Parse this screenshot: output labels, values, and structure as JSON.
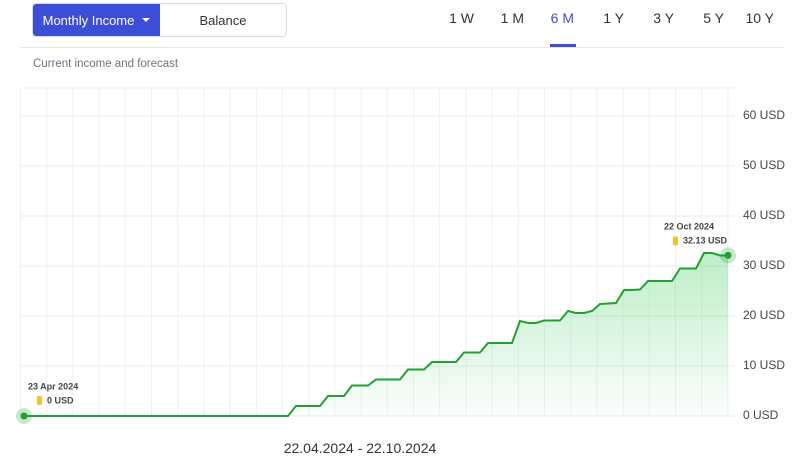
{
  "ui": {
    "tabs": [
      "Monthly Income",
      "Balance"
    ],
    "active_tab": "Monthly Income",
    "ranges": [
      "1 W",
      "1 M",
      "6 M",
      "1 Y",
      "3 Y",
      "5 Y",
      "10 Y"
    ],
    "active_range": "6 M",
    "subtitle": "Current income and forecast",
    "period": "22.04.2024 - 22.10.2024"
  },
  "chart_data": {
    "type": "line",
    "color": "#23a034",
    "area": true,
    "grid": true,
    "values": [
      0,
      0,
      0,
      0,
      0,
      0,
      0,
      0,
      0,
      0,
      0,
      0,
      0,
      0,
      0,
      0,
      0,
      0,
      0,
      0,
      0,
      0,
      0,
      0,
      0,
      0,
      0,
      0,
      0,
      0,
      0,
      0,
      0,
      0,
      2,
      2,
      2,
      2,
      4,
      4,
      4,
      6.1,
      6.1,
      6.1,
      7.3,
      7.3,
      7.3,
      7.3,
      9.3,
      9.3,
      9.3,
      10.8,
      10.8,
      10.8,
      10.8,
      12.7,
      12.7,
      12.7,
      14.6,
      14.6,
      14.6,
      14.6,
      19.0,
      18.6,
      18.6,
      19.1,
      19.1,
      19.1,
      21.0,
      20.6,
      20.6,
      21.0,
      22.4,
      22.5,
      22.6,
      25.2,
      25.2,
      25.3,
      27.0,
      27.0,
      27.0,
      27.0,
      29.5,
      29.5,
      29.5,
      32.6,
      32.6,
      32.1,
      32.13
    ],
    "ylim": [
      0,
      60
    ],
    "yticks": [
      {
        "value": 0,
        "label": "0 USD"
      },
      {
        "value": 10,
        "label": "10 USD"
      },
      {
        "value": 20,
        "label": "20 USD"
      },
      {
        "value": 30,
        "label": "30 USD"
      },
      {
        "value": 40,
        "label": "40 USD"
      },
      {
        "value": 50,
        "label": "50 USD"
      },
      {
        "value": 60,
        "label": "60 USD"
      }
    ],
    "annotations": [
      {
        "date": "23 Apr 2024",
        "text": "0 USD"
      },
      {
        "date": "22 Oct 2024",
        "text": "32.13 USD"
      }
    ]
  }
}
